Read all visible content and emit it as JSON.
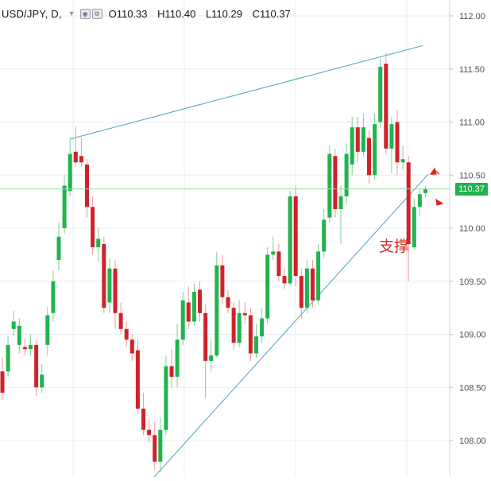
{
  "header": {
    "symbol": "USD/JPY, D,",
    "open_label": "O",
    "open": "110.33",
    "high_label": "H",
    "high": "110.40",
    "low_label": "L",
    "low": "110.29",
    "close_label": "C",
    "close": "110.37"
  },
  "price_tag": "110.37",
  "annotation": "支撑",
  "colors": {
    "up": "#21b34d",
    "down": "#d0222a",
    "trendline": "#4aa3c0",
    "price_line": "#21b34d",
    "grid": "#e9ecf1",
    "arrow": "#e0261f"
  },
  "chart_data": {
    "type": "candlestick",
    "y_tick_labels": [
      "112.00",
      "111.50",
      "111.00",
      "110.50",
      "110.00",
      "109.50",
      "109.00",
      "108.50",
      "108.00"
    ],
    "y_ticks": [
      112.0,
      111.5,
      111.0,
      110.5,
      110.0,
      109.5,
      109.0,
      108.5,
      108.0
    ],
    "ylim": [
      107.65,
      112.15
    ],
    "last_price": 110.37,
    "grid": true,
    "candles": [
      [
        108.65,
        108.45,
        108.78,
        108.38
      ],
      [
        108.65,
        108.9,
        108.98,
        108.6
      ],
      [
        109.05,
        109.12,
        109.22,
        108.98
      ],
      [
        108.9,
        109.08,
        109.15,
        108.82
      ],
      [
        108.88,
        108.86,
        108.96,
        108.8
      ],
      [
        108.86,
        108.9,
        109.0,
        108.8
      ],
      [
        108.9,
        108.5,
        108.95,
        108.42
      ],
      [
        108.5,
        108.62,
        108.72,
        108.45
      ],
      [
        108.9,
        109.18,
        109.26,
        108.8
      ],
      [
        109.2,
        109.5,
        109.6,
        109.12
      ],
      [
        109.7,
        109.92,
        110.05,
        109.6
      ],
      [
        110.0,
        110.4,
        110.5,
        109.95
      ],
      [
        110.35,
        110.7,
        110.84,
        110.3
      ],
      [
        110.72,
        110.62,
        110.96,
        110.58
      ],
      [
        110.68,
        110.62,
        110.85,
        110.58
      ],
      [
        110.6,
        110.2,
        110.65,
        110.1
      ],
      [
        110.2,
        109.82,
        110.3,
        109.75
      ],
      [
        109.82,
        109.9,
        110.0,
        109.68
      ],
      [
        109.85,
        109.25,
        109.92,
        109.2
      ],
      [
        109.3,
        109.62,
        109.72,
        109.2
      ],
      [
        109.62,
        109.2,
        109.7,
        109.05
      ],
      [
        109.2,
        109.05,
        109.3,
        109.0
      ],
      [
        109.05,
        108.95,
        109.12,
        108.88
      ],
      [
        108.95,
        108.82,
        109.0,
        108.75
      ],
      [
        108.85,
        108.3,
        108.95,
        108.25
      ],
      [
        108.3,
        108.1,
        108.45,
        108.05
      ],
      [
        108.1,
        108.05,
        108.2,
        107.98
      ],
      [
        108.05,
        107.8,
        108.18,
        107.72
      ],
      [
        107.8,
        108.1,
        108.22,
        107.7
      ],
      [
        108.1,
        108.7,
        108.8,
        108.05
      ],
      [
        108.7,
        108.6,
        108.86,
        108.5
      ],
      [
        108.6,
        108.95,
        109.1,
        108.5
      ],
      [
        108.95,
        109.32,
        109.4,
        108.9
      ],
      [
        109.3,
        109.12,
        109.45,
        109.05
      ],
      [
        109.12,
        109.4,
        109.48,
        109.08
      ],
      [
        109.42,
        109.2,
        109.5,
        109.12
      ],
      [
        109.2,
        108.75,
        109.28,
        108.4
      ],
      [
        108.75,
        108.8,
        108.95,
        108.65
      ],
      [
        108.8,
        109.65,
        109.78,
        108.78
      ],
      [
        109.65,
        109.35,
        109.75,
        109.28
      ],
      [
        109.35,
        109.25,
        109.42,
        109.2
      ],
      [
        109.25,
        108.92,
        109.3,
        108.85
      ],
      [
        108.92,
        109.2,
        109.32,
        108.88
      ],
      [
        109.2,
        109.18,
        109.3,
        109.1
      ],
      [
        109.18,
        108.82,
        109.25,
        108.75
      ],
      [
        108.82,
        108.98,
        109.1,
        108.78
      ],
      [
        108.98,
        109.15,
        109.25,
        108.92
      ],
      [
        109.15,
        109.75,
        109.82,
        109.1
      ],
      [
        109.75,
        109.78,
        109.92,
        109.7
      ],
      [
        109.78,
        109.55,
        109.85,
        109.5
      ],
      [
        109.55,
        109.48,
        109.62,
        109.42
      ],
      [
        109.48,
        110.3,
        110.35,
        109.45
      ],
      [
        110.3,
        109.55,
        110.4,
        109.45
      ],
      [
        109.55,
        109.25,
        109.62,
        109.15
      ],
      [
        109.25,
        109.62,
        109.7,
        109.2
      ],
      [
        109.62,
        109.32,
        109.7,
        109.25
      ],
      [
        109.32,
        109.78,
        109.85,
        109.28
      ],
      [
        109.78,
        110.08,
        110.18,
        109.72
      ],
      [
        110.1,
        110.7,
        110.78,
        110.05
      ],
      [
        110.68,
        110.18,
        110.75,
        110.1
      ],
      [
        110.18,
        110.3,
        110.4,
        109.85
      ],
      [
        110.3,
        110.7,
        110.8,
        110.22
      ],
      [
        110.6,
        110.95,
        111.05,
        110.5
      ],
      [
        110.95,
        110.72,
        111.05,
        110.62
      ],
      [
        110.72,
        110.95,
        111.08,
        110.68
      ],
      [
        110.85,
        110.5,
        110.92,
        110.42
      ],
      [
        110.5,
        110.98,
        111.08,
        110.45
      ],
      [
        111.0,
        111.52,
        111.6,
        110.95
      ],
      [
        111.55,
        110.75,
        111.65,
        110.7
      ],
      [
        110.75,
        110.98,
        111.05,
        110.52
      ],
      [
        111.0,
        110.62,
        111.12,
        110.5
      ],
      [
        110.62,
        110.65,
        110.78,
        110.55
      ],
      [
        110.62,
        109.85,
        110.68,
        109.5
      ],
      [
        109.82,
        110.2,
        110.28,
        109.8
      ],
      [
        110.2,
        110.32,
        110.38,
        110.12
      ],
      [
        110.33,
        110.37,
        110.4,
        110.29
      ]
    ]
  }
}
